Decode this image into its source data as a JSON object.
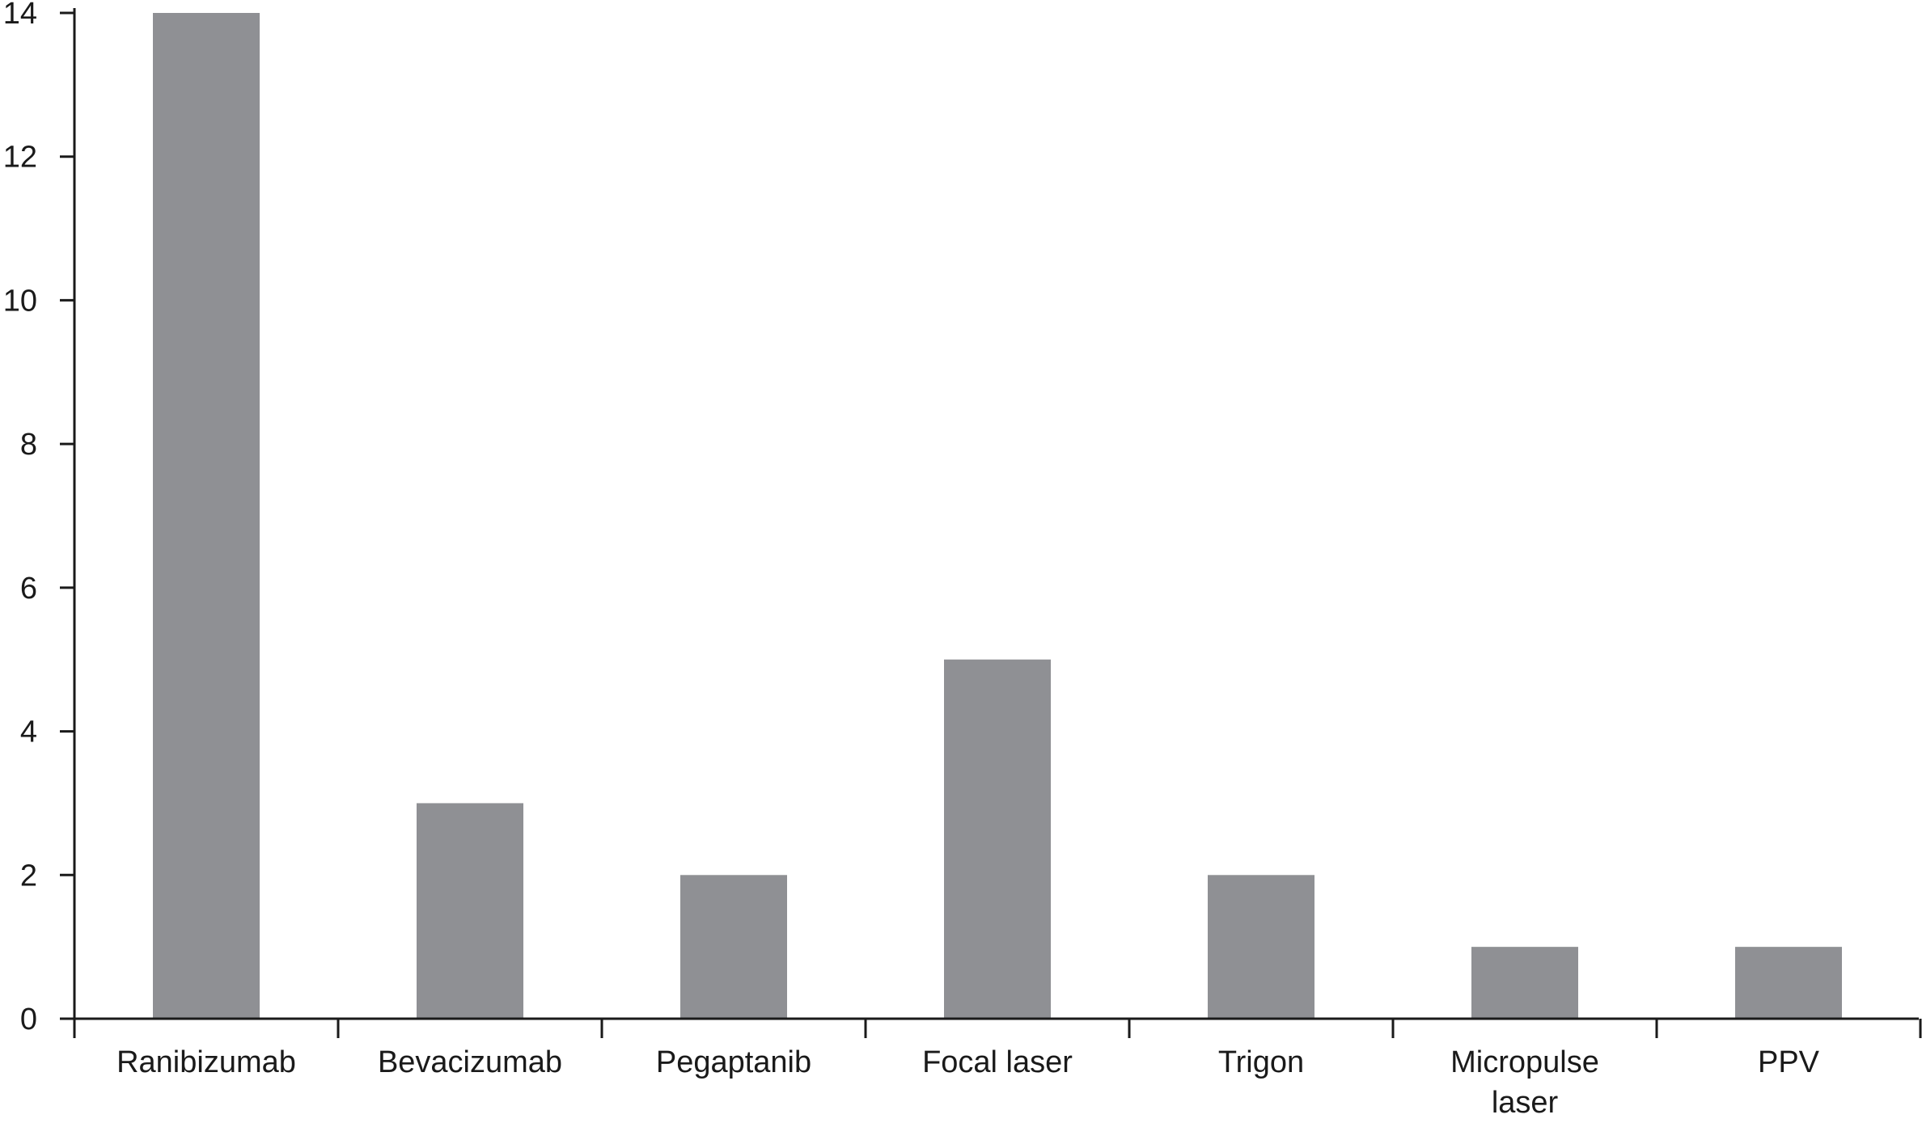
{
  "chart_data": {
    "type": "bar",
    "title": "",
    "xlabel": "",
    "ylabel": "",
    "categories": [
      "Ranibizumab",
      "Bevacizumab",
      "Pegaptanib",
      "Focal laser",
      "Trigon",
      "Micropulse laser",
      "PPV"
    ],
    "category_lines": [
      [
        "Ranibizumab"
      ],
      [
        "Bevacizumab"
      ],
      [
        "Pegaptanib"
      ],
      [
        "Focal laser"
      ],
      [
        "Trigon"
      ],
      [
        "Micropulse",
        "laser"
      ],
      [
        "PPV"
      ]
    ],
    "values": [
      14,
      3,
      2,
      5,
      2,
      1,
      1
    ],
    "ylim": [
      0,
      14
    ],
    "yticks": [
      0,
      2,
      4,
      6,
      8,
      10,
      12,
      14
    ],
    "grid": false,
    "legend": "none",
    "bar_color": "#8f9094",
    "axis_color": "#1a1a1a"
  }
}
